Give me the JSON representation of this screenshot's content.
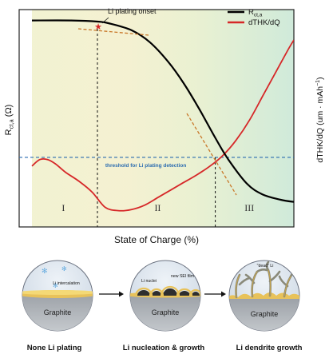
{
  "chart_data": {
    "type": "line",
    "xlabel": "State of Charge (%)",
    "ylabel_left": {
      "main": "R",
      "sub": "ct,a",
      "unit": " (Ω)"
    },
    "ylabel_right": {
      "main": "dTHK/dQ (um · mAh",
      "sup": "−1",
      "end": ")"
    },
    "legend": [
      {
        "main": "R",
        "sub": "ct,a",
        "color": "#000000"
      },
      {
        "main": "dTHK/dQ",
        "sub": "",
        "color": "#d62728"
      }
    ],
    "annotations": {
      "onset": "Li plating onset",
      "threshold": "threshold for Li plating detection"
    },
    "regions": [
      "I",
      "II",
      "III"
    ],
    "xlim": [
      0,
      100
    ],
    "ylim": [
      0,
      100
    ],
    "series": [
      {
        "key": "rct",
        "color": "#000000",
        "x": [
          0,
          15,
          25,
          30,
          38,
          45,
          52,
          58,
          64,
          70,
          75,
          82,
          88,
          95,
          100
        ],
        "y": [
          95,
          95,
          94.5,
          93.5,
          90.5,
          85,
          76,
          66,
          54,
          41,
          31,
          20,
          15,
          12.5,
          11.5
        ]
      },
      {
        "key": "dthk",
        "color": "#d62728",
        "x": [
          0,
          3,
          6,
          9,
          13,
          18,
          23,
          28,
          33,
          38,
          43,
          48,
          53,
          58,
          63,
          68,
          73,
          78,
          83,
          88,
          93,
          98,
          100
        ],
        "y": [
          28,
          31,
          31,
          29,
          25,
          21,
          16,
          9,
          7.5,
          8,
          10,
          13.5,
          17,
          20.5,
          24,
          28,
          33,
          40,
          49,
          60,
          71,
          82,
          86
        ]
      }
    ],
    "threshold_y": 32,
    "onset_x": 25,
    "crossover_x": 70
  },
  "stages": [
    {
      "key": "none",
      "title": "None Li plating",
      "substrate": "Graphite",
      "label": "Li intercalation"
    },
    {
      "key": "nucleation",
      "title": "Li nucleation & growth",
      "substrate": "Graphite",
      "label_a": "Li nuclei",
      "label_b": "new SEI film"
    },
    {
      "key": "dendrite",
      "title": "Li dendrite growth",
      "substrate": "Graphite",
      "label": "\"dead\" Li"
    }
  ]
}
